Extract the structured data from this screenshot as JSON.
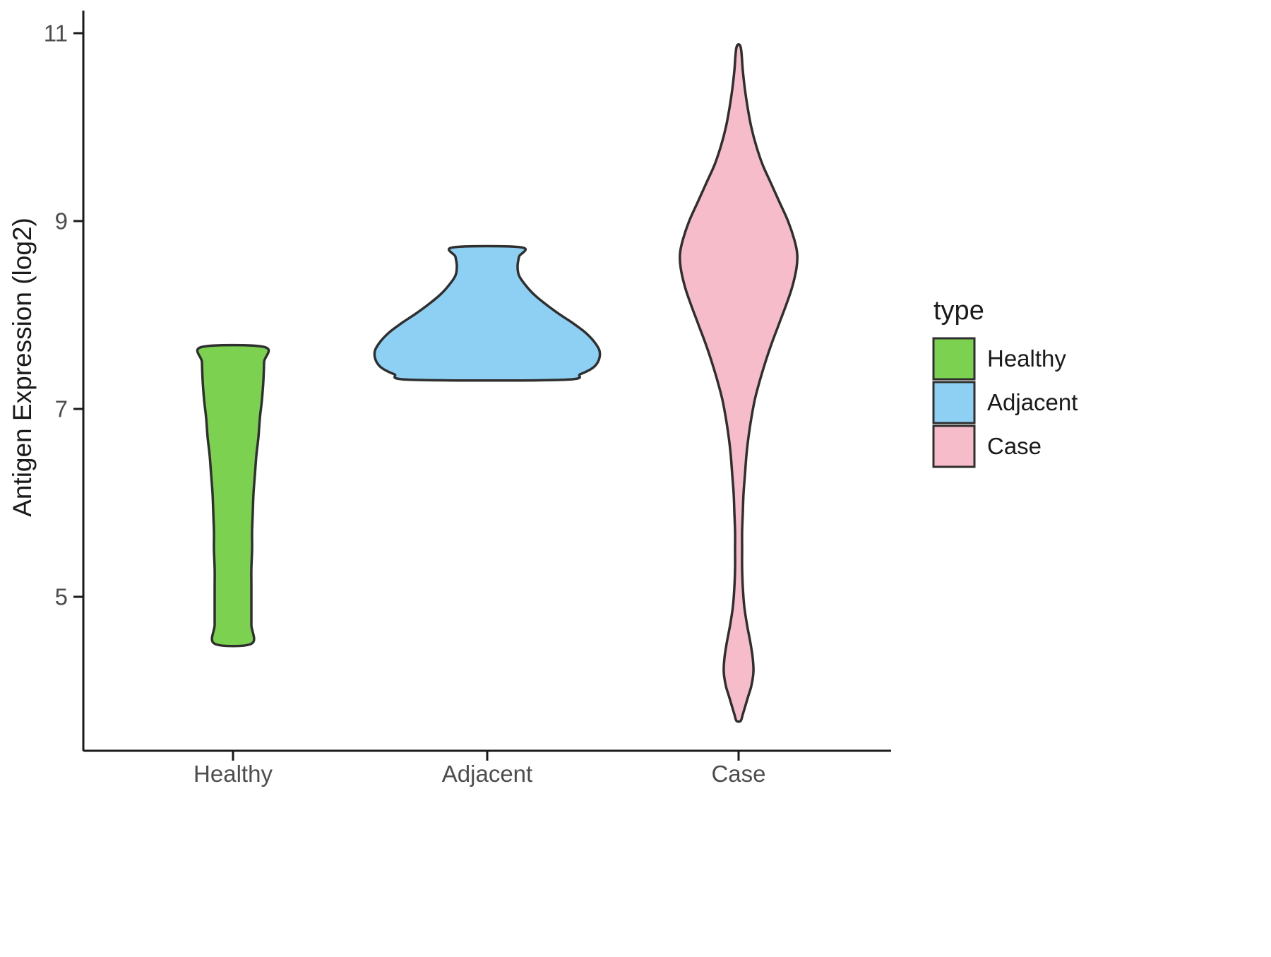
{
  "chart_data": {
    "type": "violin",
    "title": "",
    "xlabel": "",
    "ylabel": "Antigen Expression (log2)",
    "categories": [
      "Healthy",
      "Adjacent",
      "Case"
    ],
    "ylim": [
      3.4,
      11.2
    ],
    "grid": false,
    "axis_color": "#1a1a1a",
    "violin_stroke_color": "#2f2f2f",
    "y_ticks": [
      {
        "value": 11,
        "label": "11"
      },
      {
        "value": 9,
        "label": "9"
      },
      {
        "value": 7,
        "label": "7"
      },
      {
        "value": 5,
        "label": "5"
      }
    ],
    "legend": {
      "title": "type",
      "position": "right",
      "entries": [
        {
          "label": "Healthy",
          "color": "#7cd250"
        },
        {
          "label": "Adjacent",
          "color": "#8dd0f3"
        },
        {
          "label": "Case",
          "color": "#f6bcca"
        }
      ]
    },
    "series": [
      {
        "name": "Healthy",
        "color": "#7cd250",
        "y_min": 4.5,
        "y_max": 7.66,
        "truncated_top": true,
        "truncated_bottom": true,
        "profile": [
          [
            7.66,
            44
          ],
          [
            7.5,
            44
          ],
          [
            7.3,
            43
          ],
          [
            7.1,
            41
          ],
          [
            6.9,
            38
          ],
          [
            6.7,
            36
          ],
          [
            6.5,
            33
          ],
          [
            6.3,
            31
          ],
          [
            6.1,
            29
          ],
          [
            5.9,
            28
          ],
          [
            5.7,
            27
          ],
          [
            5.5,
            27
          ],
          [
            5.3,
            26
          ],
          [
            5.1,
            26
          ],
          [
            4.9,
            26
          ],
          [
            4.7,
            26
          ],
          [
            4.5,
            26
          ]
        ]
      },
      {
        "name": "Adjacent",
        "color": "#8dd0f3",
        "y_min": 7.31,
        "y_max": 8.72,
        "truncated_top": true,
        "truncated_bottom": true,
        "profile": [
          [
            8.72,
            48
          ],
          [
            8.62,
            45
          ],
          [
            8.52,
            43
          ],
          [
            8.42,
            45
          ],
          [
            8.32,
            54
          ],
          [
            8.22,
            66
          ],
          [
            8.12,
            82
          ],
          [
            8.02,
            100
          ],
          [
            7.92,
            120
          ],
          [
            7.82,
            138
          ],
          [
            7.72,
            151
          ],
          [
            7.62,
            159
          ],
          [
            7.52,
            158
          ],
          [
            7.44,
            150
          ],
          [
            7.37,
            132
          ],
          [
            7.31,
            106
          ]
        ]
      },
      {
        "name": "Case",
        "color": "#f6bcca",
        "y_min": 3.68,
        "y_max": 10.85,
        "truncated_top": false,
        "truncated_bottom": false,
        "profile": [
          [
            10.85,
            3
          ],
          [
            10.6,
            6
          ],
          [
            10.4,
            9
          ],
          [
            10.2,
            13
          ],
          [
            10.0,
            18
          ],
          [
            9.8,
            25
          ],
          [
            9.6,
            34
          ],
          [
            9.4,
            46
          ],
          [
            9.2,
            58
          ],
          [
            9.0,
            70
          ],
          [
            8.8,
            79
          ],
          [
            8.65,
            83
          ],
          [
            8.5,
            82
          ],
          [
            8.3,
            76
          ],
          [
            8.1,
            67
          ],
          [
            7.9,
            57
          ],
          [
            7.7,
            47
          ],
          [
            7.5,
            38
          ],
          [
            7.3,
            30
          ],
          [
            7.1,
            23
          ],
          [
            6.9,
            18
          ],
          [
            6.7,
            14
          ],
          [
            6.5,
            11
          ],
          [
            6.3,
            9
          ],
          [
            6.1,
            7
          ],
          [
            5.9,
            6
          ],
          [
            5.7,
            5
          ],
          [
            5.5,
            5
          ],
          [
            5.3,
            5
          ],
          [
            5.1,
            6
          ],
          [
            4.9,
            8
          ],
          [
            4.7,
            12
          ],
          [
            4.5,
            17
          ],
          [
            4.35,
            20
          ],
          [
            4.2,
            21
          ],
          [
            4.05,
            18
          ],
          [
            3.95,
            14
          ],
          [
            3.85,
            10
          ],
          [
            3.75,
            6
          ],
          [
            3.68,
            3
          ]
        ]
      }
    ]
  }
}
